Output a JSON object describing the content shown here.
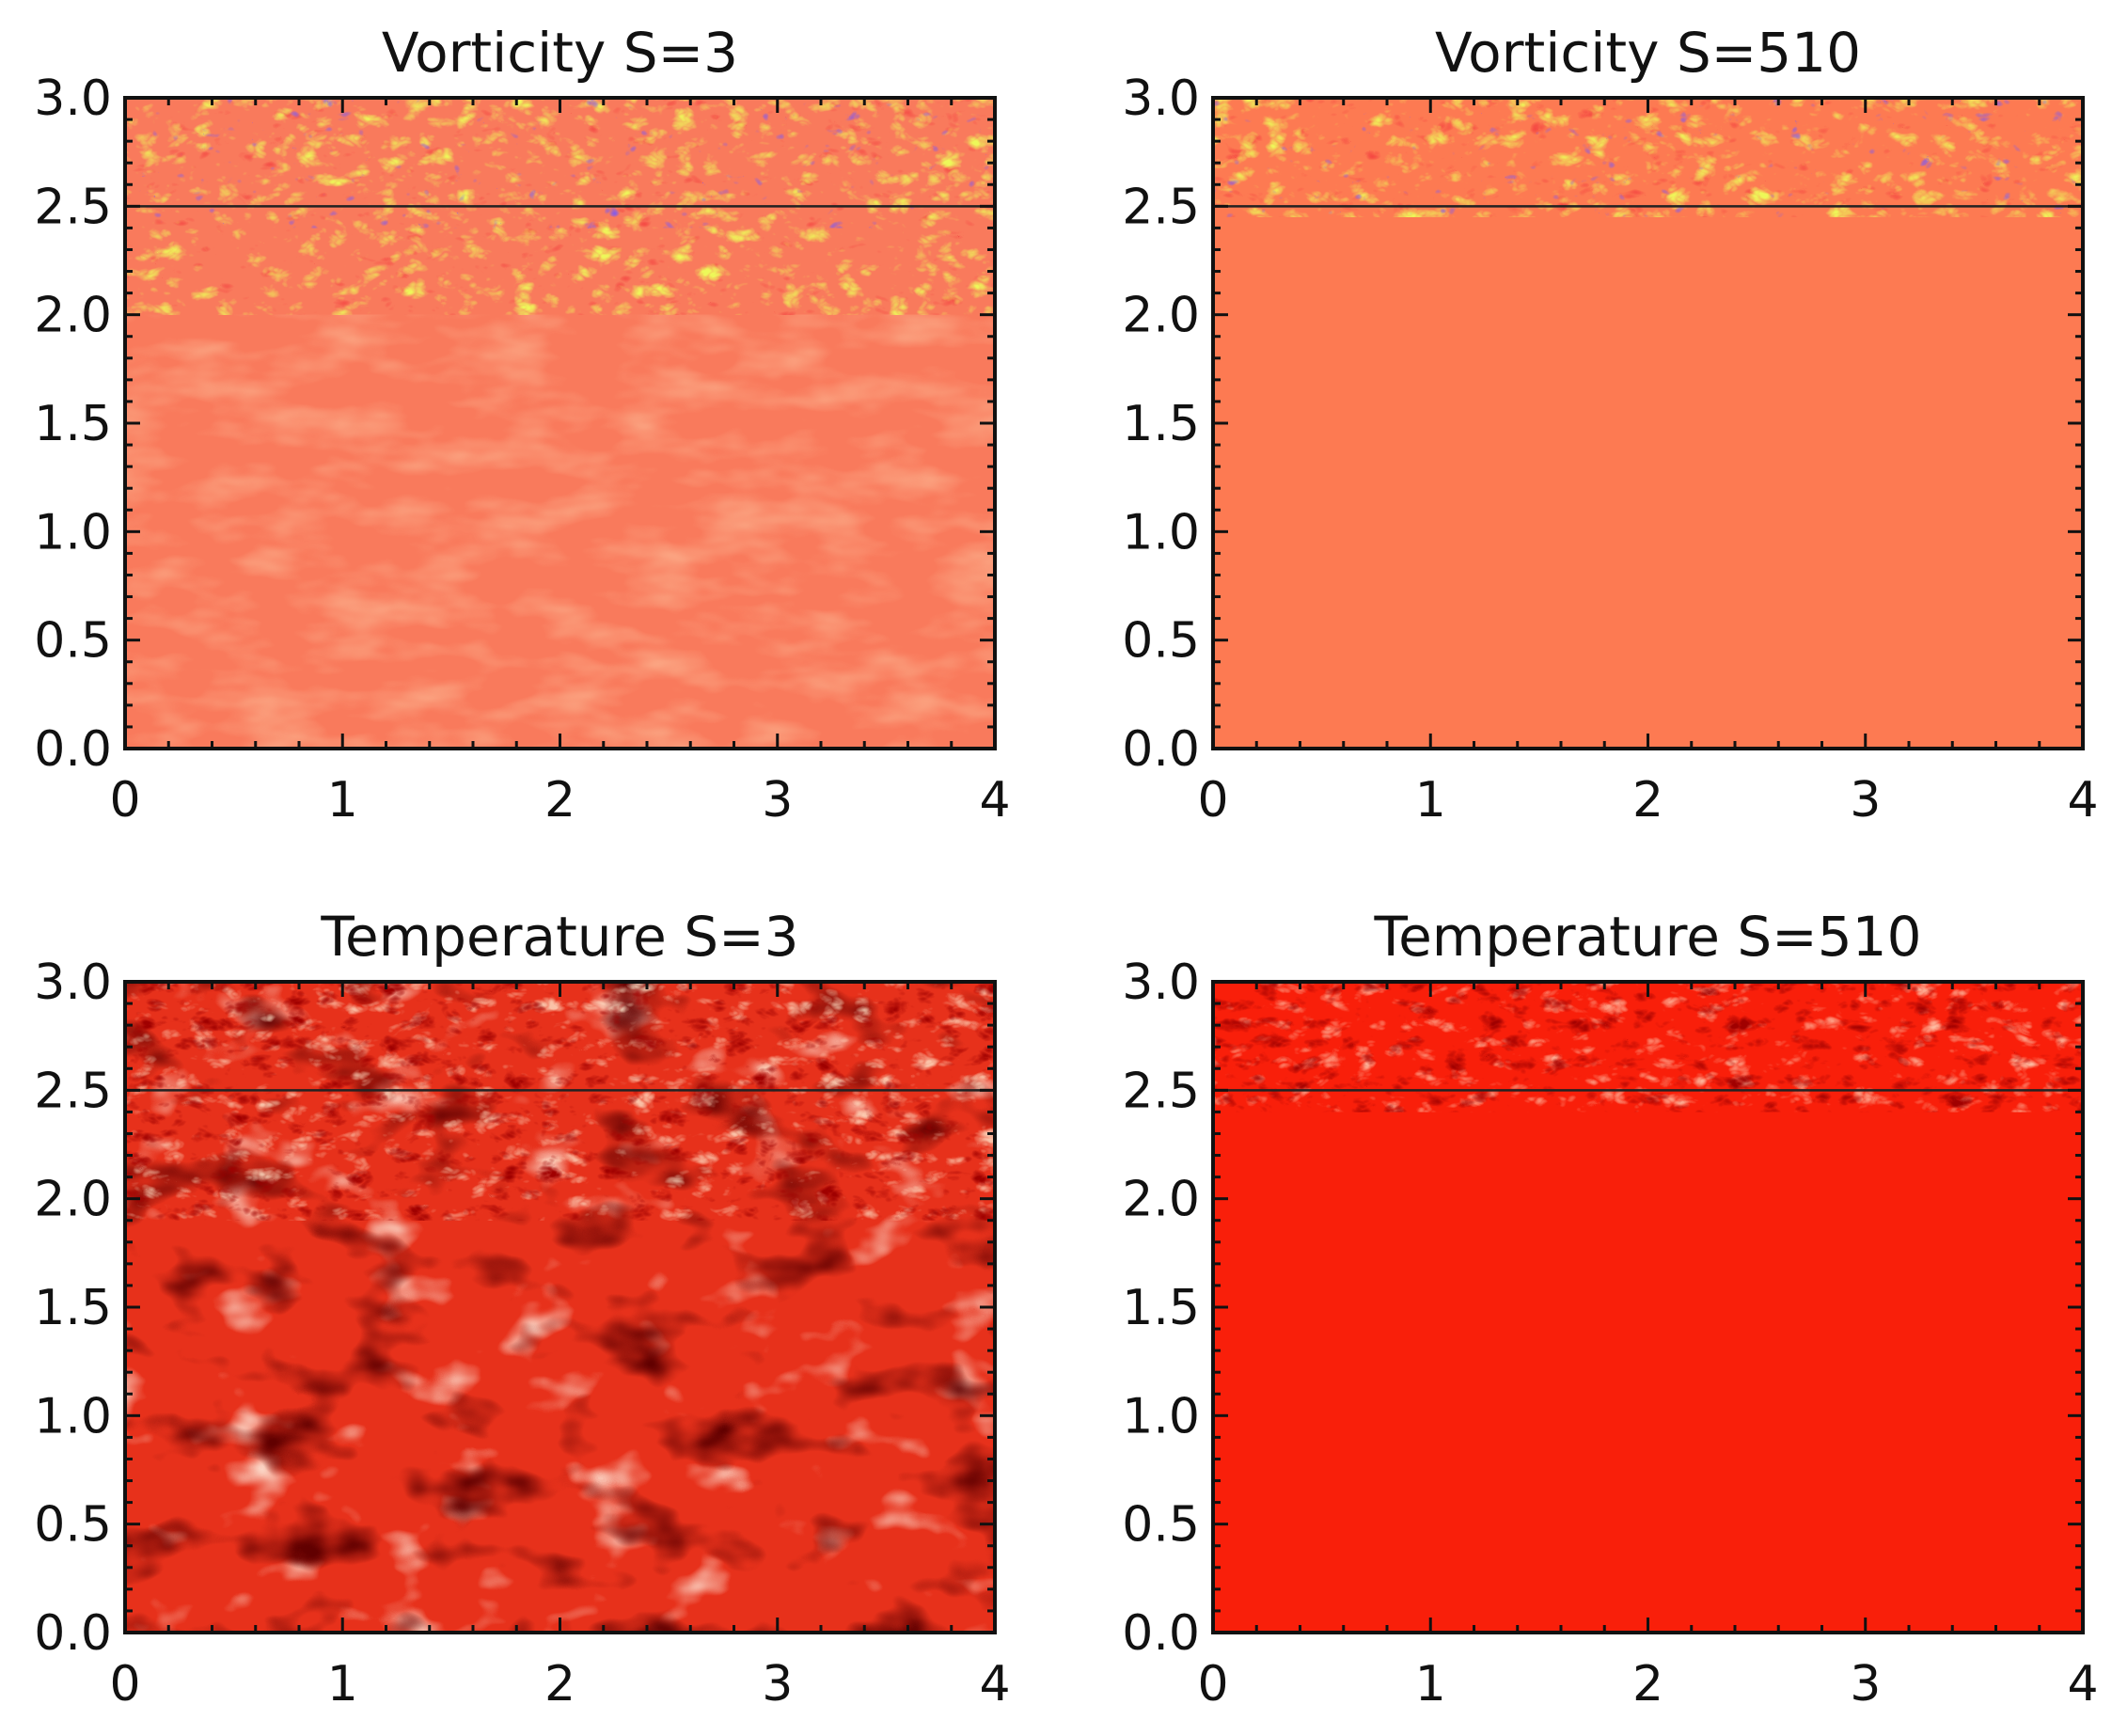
{
  "figure": "four-panel simulation snapshots",
  "chart_data": [
    {
      "type": "heatmap",
      "title": "Vorticity S=3",
      "xlabel": "",
      "ylabel": "",
      "xlim": [
        0,
        4
      ],
      "ylim": [
        0,
        3
      ],
      "x_ticks": [
        "0",
        "1",
        "2",
        "3",
        "4"
      ],
      "y_ticks": [
        "0.0",
        "0.5",
        "1.0",
        "1.5",
        "2.0",
        "2.5",
        "3.0"
      ],
      "reference_line_y": 2.5,
      "colormap": "vorticity",
      "turbulent_layer_top": 3.0,
      "turbulent_layer_bottom": 2.0,
      "base_color": "#f97a5c",
      "interior_variability": "strong"
    },
    {
      "type": "heatmap",
      "title": "Vorticity S=510",
      "xlabel": "",
      "ylabel": "",
      "xlim": [
        0,
        4
      ],
      "ylim": [
        0,
        3
      ],
      "x_ticks": [
        "0",
        "1",
        "2",
        "3",
        "4"
      ],
      "y_ticks": [
        "0.0",
        "0.5",
        "1.0",
        "1.5",
        "2.0",
        "2.5",
        "3.0"
      ],
      "reference_line_y": 2.5,
      "colormap": "vorticity",
      "turbulent_layer_top": 3.0,
      "turbulent_layer_bottom": 2.45,
      "base_color": "#fd7a52",
      "interior_variability": "weak"
    },
    {
      "type": "heatmap",
      "title": "Temperature S=3",
      "xlabel": "",
      "ylabel": "",
      "xlim": [
        0,
        4
      ],
      "ylim": [
        0,
        3
      ],
      "x_ticks": [
        "0",
        "1",
        "2",
        "3",
        "4"
      ],
      "y_ticks": [
        "0.0",
        "0.5",
        "1.0",
        "1.5",
        "2.0",
        "2.5",
        "3.0"
      ],
      "reference_line_y": 2.5,
      "colormap": "temperature",
      "turbulent_layer_top": 3.0,
      "turbulent_layer_bottom": 1.9,
      "base_color": "#e7311b",
      "interior_variability": "strong"
    },
    {
      "type": "heatmap",
      "title": "Temperature S=510",
      "xlabel": "",
      "ylabel": "",
      "xlim": [
        0,
        4
      ],
      "ylim": [
        0,
        3
      ],
      "x_ticks": [
        "0",
        "1",
        "2",
        "3",
        "4"
      ],
      "y_ticks": [
        "0.0",
        "0.5",
        "1.0",
        "1.5",
        "2.0",
        "2.5",
        "3.0"
      ],
      "reference_line_y": 2.5,
      "colormap": "temperature",
      "turbulent_layer_top": 3.0,
      "turbulent_layer_bottom": 2.4,
      "base_color": "#f91f0a",
      "interior_variability": "weak"
    }
  ]
}
